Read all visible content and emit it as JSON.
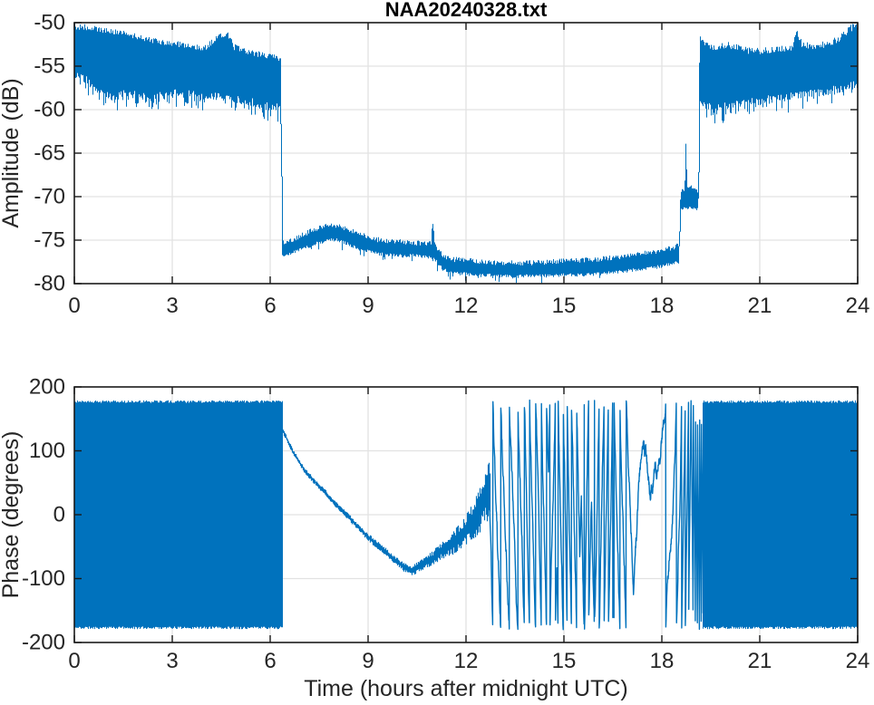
{
  "figure": {
    "title": "NAA20240328.txt"
  },
  "colors": {
    "line": "#0072BD",
    "grid": "#e2e2e2",
    "axis": "#1a1a1a",
    "tick_label": "#262626",
    "label": "#262626",
    "title": "#000000",
    "background": "#ffffff"
  },
  "chart_data": [
    {
      "type": "line",
      "title": "NAA20240328.txt",
      "ylabel": "Amplitude (dB)",
      "xlabel": "",
      "xlim": [
        0,
        24
      ],
      "ylim": [
        -80,
        -50
      ],
      "x_ticks": [
        0,
        3,
        6,
        9,
        12,
        15,
        18,
        21,
        24
      ],
      "y_ticks": [
        -50,
        -55,
        -60,
        -65,
        -70,
        -75,
        -80
      ],
      "grid": true,
      "legend": null,
      "series": [
        {
          "name": "amplitude",
          "style": "noise-band",
          "seed": 20240328,
          "upper": [
            [
              0,
              -50.4
            ],
            [
              0.5,
              -50.6
            ],
            [
              1.0,
              -50.9
            ],
            [
              1.5,
              -51.2
            ],
            [
              2.0,
              -51.7
            ],
            [
              2.5,
              -52.1
            ],
            [
              3.0,
              -52.4
            ],
            [
              3.5,
              -52.6
            ],
            [
              4.0,
              -52.9
            ],
            [
              4.4,
              -51.6
            ],
            [
              4.7,
              -51.4
            ],
            [
              4.9,
              -52.8
            ],
            [
              5.2,
              -53.2
            ],
            [
              5.6,
              -53.6
            ],
            [
              6.0,
              -53.8
            ],
            [
              6.33,
              -54.1
            ],
            [
              6.37,
              -75.3
            ],
            [
              6.6,
              -75.1
            ],
            [
              7.0,
              -74.4
            ],
            [
              7.4,
              -73.7
            ],
            [
              7.8,
              -73.3
            ],
            [
              8.1,
              -73.3
            ],
            [
              8.4,
              -73.8
            ],
            [
              8.8,
              -74.4
            ],
            [
              9.2,
              -74.9
            ],
            [
              9.6,
              -75.1
            ],
            [
              10.0,
              -75.2
            ],
            [
              10.4,
              -75.3
            ],
            [
              10.8,
              -75.4
            ],
            [
              10.93,
              -75.3
            ],
            [
              10.98,
              -72.9
            ],
            [
              11.05,
              -75.6
            ],
            [
              11.3,
              -76.9
            ],
            [
              11.6,
              -77.2
            ],
            [
              12.0,
              -77.3
            ],
            [
              12.5,
              -77.5
            ],
            [
              13.0,
              -77.6
            ],
            [
              13.5,
              -77.6
            ],
            [
              14.0,
              -77.6
            ],
            [
              14.5,
              -77.5
            ],
            [
              15.0,
              -77.4
            ],
            [
              15.5,
              -77.3
            ],
            [
              16.0,
              -77.2
            ],
            [
              16.5,
              -77.0
            ],
            [
              17.0,
              -76.8
            ],
            [
              17.5,
              -76.5
            ],
            [
              18.0,
              -76.2
            ],
            [
              18.3,
              -75.9
            ],
            [
              18.53,
              -75.6
            ],
            [
              18.57,
              -70.1
            ],
            [
              18.62,
              -69.3
            ],
            [
              18.7,
              -69.4
            ],
            [
              18.74,
              -63.3
            ],
            [
              18.78,
              -68.9
            ],
            [
              19.0,
              -69.1
            ],
            [
              19.12,
              -69.4
            ],
            [
              19.16,
              -51.3
            ],
            [
              19.3,
              -52.5
            ],
            [
              19.6,
              -52.8
            ],
            [
              20.0,
              -52.5
            ],
            [
              20.4,
              -53.0
            ],
            [
              20.8,
              -53.3
            ],
            [
              21.2,
              -53.2
            ],
            [
              21.6,
              -53.0
            ],
            [
              22.0,
              -52.8
            ],
            [
              22.15,
              -51.1
            ],
            [
              22.3,
              -52.6
            ],
            [
              22.7,
              -52.7
            ],
            [
              23.1,
              -52.4
            ],
            [
              23.5,
              -51.7
            ],
            [
              23.8,
              -50.6
            ],
            [
              24,
              -50.4
            ]
          ],
          "lower": [
            [
              0,
              -55.6
            ],
            [
              0.4,
              -56.2
            ],
            [
              0.8,
              -57.6
            ],
            [
              1.2,
              -58.2
            ],
            [
              1.6,
              -57.6
            ],
            [
              2.0,
              -57.9
            ],
            [
              2.4,
              -58.1
            ],
            [
              2.8,
              -57.8
            ],
            [
              3.2,
              -57.6
            ],
            [
              3.6,
              -57.8
            ],
            [
              4.0,
              -58.2
            ],
            [
              4.4,
              -58.0
            ],
            [
              4.8,
              -58.3
            ],
            [
              5.2,
              -58.5
            ],
            [
              5.6,
              -58.8
            ],
            [
              6.0,
              -59.1
            ],
            [
              6.33,
              -59.4
            ],
            [
              6.37,
              -76.6
            ],
            [
              6.6,
              -76.3
            ],
            [
              7.0,
              -75.8
            ],
            [
              7.4,
              -75.2
            ],
            [
              7.8,
              -74.8
            ],
            [
              8.1,
              -74.8
            ],
            [
              8.4,
              -75.3
            ],
            [
              8.8,
              -75.9
            ],
            [
              9.2,
              -76.3
            ],
            [
              9.6,
              -76.5
            ],
            [
              10.0,
              -76.6
            ],
            [
              10.4,
              -76.6
            ],
            [
              10.8,
              -76.7
            ],
            [
              11.05,
              -77.0
            ],
            [
              11.3,
              -78.2
            ],
            [
              11.6,
              -78.6
            ],
            [
              12.0,
              -78.7
            ],
            [
              12.5,
              -78.8
            ],
            [
              13.0,
              -78.9
            ],
            [
              13.5,
              -79.0
            ],
            [
              14.0,
              -78.9
            ],
            [
              14.5,
              -78.9
            ],
            [
              15.0,
              -78.8
            ],
            [
              15.5,
              -78.8
            ],
            [
              16.0,
              -78.7
            ],
            [
              16.5,
              -78.5
            ],
            [
              17.0,
              -78.3
            ],
            [
              17.5,
              -78.1
            ],
            [
              18.0,
              -77.8
            ],
            [
              18.3,
              -77.5
            ],
            [
              18.53,
              -77.3
            ],
            [
              18.57,
              -71.4
            ],
            [
              18.62,
              -71.1
            ],
            [
              19.0,
              -71.2
            ],
            [
              19.12,
              -71.3
            ],
            [
              19.16,
              -57.9
            ],
            [
              19.3,
              -58.9
            ],
            [
              19.6,
              -59.4
            ],
            [
              20.0,
              -59.0
            ],
            [
              20.4,
              -58.7
            ],
            [
              20.8,
              -58.6
            ],
            [
              21.2,
              -58.4
            ],
            [
              21.6,
              -58.2
            ],
            [
              22.0,
              -58.0
            ],
            [
              22.4,
              -57.8
            ],
            [
              22.8,
              -57.6
            ],
            [
              23.2,
              -57.3
            ],
            [
              23.6,
              -57.0
            ],
            [
              24,
              -56.6
            ]
          ],
          "noise_zones": [
            {
              "t0": 0,
              "t1": 6.35,
              "jt": 0.35,
              "jb": 1.0,
              "spike_p": 0.3,
              "spike": 1.2
            },
            {
              "t0": 6.35,
              "t1": 18.55,
              "jt": 0.3,
              "jb": 0.4,
              "spike_p": 0.08,
              "spike": 0.7
            },
            {
              "t0": 18.55,
              "t1": 19.15,
              "jt": 0.3,
              "jb": 0.4,
              "spike_p": 0.05,
              "spike": 0.5
            },
            {
              "t0": 19.15,
              "t1": 24.01,
              "jt": 0.4,
              "jb": 1.0,
              "spike_p": 0.2,
              "spike": 1.2
            }
          ]
        }
      ]
    },
    {
      "type": "line",
      "title": "",
      "ylabel": "Phase (degrees)",
      "xlabel": "Time (hours after midnight UTC)",
      "xlim": [
        0,
        24
      ],
      "ylim": [
        -200,
        200
      ],
      "x_ticks": [
        0,
        3,
        6,
        9,
        12,
        15,
        18,
        21,
        24
      ],
      "y_ticks": [
        200,
        100,
        0,
        -100,
        -200
      ],
      "grid": true,
      "legend": null,
      "series": [
        {
          "name": "phase-noise-early",
          "style": "noise-fill",
          "seed": 11,
          "t0": 0,
          "t1": 6.36,
          "top": 179,
          "bottom": -179,
          "edge_jitter": 4
        },
        {
          "name": "phase-trend",
          "style": "noisy-trend",
          "seed": 22,
          "points": [
            [
              6.38,
              133
            ],
            [
              6.5,
              120
            ],
            [
              6.7,
              98
            ],
            [
              6.9,
              82
            ],
            [
              7.1,
              66
            ],
            [
              7.4,
              50
            ],
            [
              7.7,
              34
            ],
            [
              8.0,
              16
            ],
            [
              8.3,
              2
            ],
            [
              8.6,
              -14
            ],
            [
              8.9,
              -30
            ],
            [
              9.2,
              -44
            ],
            [
              9.5,
              -56
            ],
            [
              9.8,
              -70
            ],
            [
              10.1,
              -82
            ],
            [
              10.35,
              -88
            ],
            [
              10.6,
              -80
            ],
            [
              10.8,
              -73
            ],
            [
              11.0,
              -68
            ],
            [
              11.2,
              -58
            ],
            [
              11.4,
              -50
            ],
            [
              11.6,
              -44
            ],
            [
              11.8,
              -36
            ],
            [
              12.0,
              -24
            ],
            [
              12.2,
              -10
            ],
            [
              12.4,
              6
            ],
            [
              12.55,
              24
            ],
            [
              12.72,
              44
            ]
          ],
          "amp": [
            [
              6.38,
              5
            ],
            [
              7.0,
              5
            ],
            [
              8.0,
              5
            ],
            [
              9.0,
              6
            ],
            [
              10.0,
              7
            ],
            [
              10.6,
              9
            ],
            [
              11.0,
              12
            ],
            [
              11.4,
              16
            ],
            [
              11.8,
              21
            ],
            [
              12.1,
              27
            ],
            [
              12.4,
              38
            ],
            [
              12.72,
              55
            ]
          ]
        },
        {
          "name": "phase-chaos",
          "style": "wrapped-chaos",
          "seed": 33,
          "t0": 12.72,
          "t1": 19.3,
          "start": 44,
          "jitter": 10,
          "flip_prob": 0.012,
          "speed": [
            [
              12.72,
              2400
            ],
            [
              13.0,
              1700
            ],
            [
              13.3,
              1100
            ],
            [
              13.6,
              1600
            ],
            [
              13.9,
              2300
            ],
            [
              14.2,
              1900
            ],
            [
              14.5,
              2500
            ],
            [
              14.8,
              2100
            ],
            [
              15.1,
              2700
            ],
            [
              15.4,
              2300
            ],
            [
              15.7,
              2800
            ],
            [
              16.0,
              2400
            ],
            [
              16.3,
              2900
            ],
            [
              16.6,
              2200
            ],
            [
              16.9,
              1500
            ],
            [
              17.2,
              900
            ],
            [
              17.5,
              450
            ],
            [
              17.8,
              350
            ],
            [
              18.0,
              550
            ],
            [
              18.2,
              900
            ],
            [
              18.4,
              1600
            ],
            [
              18.6,
              2800
            ],
            [
              18.8,
              4200
            ],
            [
              19.0,
              5600
            ],
            [
              19.3,
              6500
            ]
          ]
        },
        {
          "name": "phase-noise-late",
          "style": "noise-fill",
          "seed": 44,
          "t0": 19.25,
          "t1": 24.01,
          "top": 179,
          "bottom": -179,
          "edge_jitter": 4
        }
      ]
    }
  ]
}
